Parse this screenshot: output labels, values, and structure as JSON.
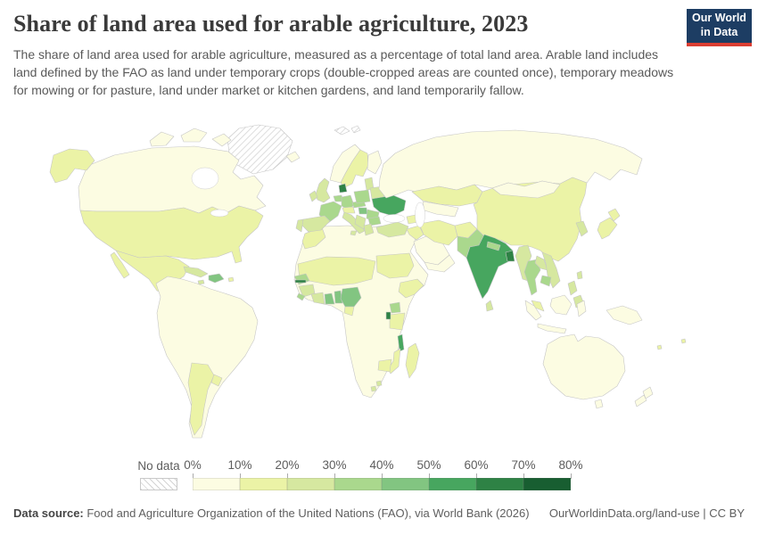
{
  "header": {
    "title": "Share of land area used for arable agriculture, 2023",
    "subtitle": "The share of land area used for arable agriculture, measured as a percentage of total land area. Arable land includes land defined by the FAO as land under temporary crops (double-cropped areas are counted once), temporary meadows for mowing or for pasture, land under market or kitchen gardens, and land temporarily fallow.",
    "logo_line1": "Our World",
    "logo_line2": "in Data",
    "logo_bg": "#1d3d63",
    "logo_accent": "#dc3e32"
  },
  "legend": {
    "no_data_label": "No data",
    "ticks": [
      "0%",
      "10%",
      "20%",
      "30%",
      "40%",
      "50%",
      "60%",
      "70%",
      "80%"
    ]
  },
  "footer": {
    "source_label": "Data source:",
    "source_text": " Food and Agriculture Organization of the United Nations (FAO), via World Bank (2026)",
    "right_text": "OurWorldinData.org/land-use | CC BY"
  },
  "chart_data": {
    "type": "choropleth-map",
    "title": "Share of land area used for arable agriculture, 2023",
    "year": "2023",
    "unit": "% of total land area",
    "bin_edges_percent": [
      0,
      10,
      20,
      30,
      40,
      50,
      60,
      70,
      80
    ],
    "bin_labels": [
      "0-10%",
      "10-20%",
      "20-30%",
      "30-40%",
      "40-50%",
      "50-60%",
      "60-70%",
      "70-80%"
    ],
    "palette": [
      "#fcfce2",
      "#ebf3a6",
      "#d6e8a0",
      "#aad88d",
      "#82c581",
      "#47a65f",
      "#2e8245",
      "#185e31"
    ],
    "no_data_style": "diagonal-hatch",
    "regions": {
      "greenland": "no-data",
      "svalbard": "no-data",
      "canada": 0,
      "united-states": 1,
      "mexico": 1,
      "central-america": 2,
      "guatemala": 3,
      "cuba": 2,
      "hispaniola": 4,
      "jamaica": 2,
      "puerto-rico": 1,
      "south-america": 0,
      "argentina": 1,
      "uruguay": 1,
      "iceland": 0,
      "norway": 0,
      "sweden": 1,
      "finland": 0,
      "denmark": 6,
      "united-kingdom": 2,
      "ireland": 2,
      "benelux": 3,
      "germany": 3,
      "france": 3,
      "spain": 2,
      "portugal": 2,
      "italy": 2,
      "alps": 1,
      "czech-slovakia": 3,
      "poland": 3,
      "baltics": 2,
      "belarus": 2,
      "ukraine": 5,
      "hungary": 4,
      "romania": 3,
      "balkans": 2,
      "greece": 2,
      "bulgaria": 3,
      "turkey": 2,
      "caucasus": 1,
      "russia": 0,
      "kazakhstan": 1,
      "central-asia": 0,
      "syria-iraq": 1,
      "saudi-arabia": 0,
      "yemen-oman": 0,
      "iran": 1,
      "afghanistan": 1,
      "pakistan": 3,
      "india": 5,
      "nepal": 3,
      "bangladesh": 6,
      "sri-lanka": 2,
      "myanmar": 2,
      "thailand": 3,
      "laos": 2,
      "vietnam": 2,
      "cambodia": 3,
      "malaysia": 1,
      "china": 1,
      "mongolia": 0,
      "korea": 2,
      "japan": 1,
      "taiwan": 2,
      "philippines": 2,
      "indonesia": 0,
      "new-guinea": 0,
      "australia": 0,
      "new-zealand": 0,
      "pacific-islands": 1,
      "africa": 0,
      "madagascar": 1,
      "morocco": 1,
      "sahel": 1,
      "senegal": 3,
      "gambia": 6,
      "guinea": 2,
      "sierra-leone": 3,
      "ivory-coast": 2,
      "ghana": 4,
      "togo-benin": 4,
      "nigeria": 4,
      "cameroon": 1,
      "sudan": 1,
      "ethiopia": 1,
      "uganda": 3,
      "tanzania": 1,
      "rwanda-burundi": 6,
      "malawi": 5,
      "zimbabwe": 1,
      "mozambique": 1,
      "lesotho-eswatini": 2
    }
  }
}
